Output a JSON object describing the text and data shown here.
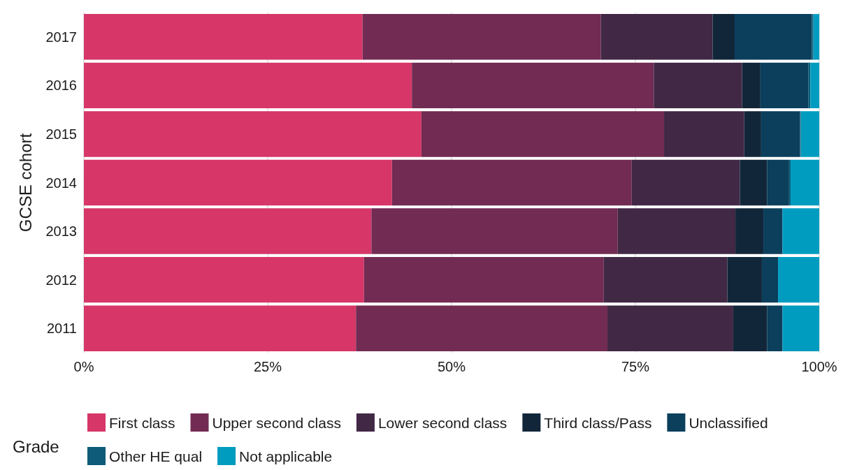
{
  "chart_data": {
    "type": "bar",
    "orientation": "horizontal",
    "stacked": true,
    "ylabel": "GCSE cohort",
    "legend_title": "Grade",
    "categories": [
      "2017",
      "2016",
      "2015",
      "2014",
      "2013",
      "2012",
      "2011"
    ],
    "series": [
      {
        "name": "First class",
        "color": "#d63668",
        "values": [
          37.9,
          44.6,
          45.9,
          41.9,
          39.1,
          38.1,
          37.0
        ]
      },
      {
        "name": "Upper second class",
        "color": "#722b53",
        "values": [
          32.4,
          32.9,
          33.0,
          32.6,
          33.5,
          32.6,
          34.2
        ]
      },
      {
        "name": "Lower second class",
        "color": "#412845",
        "values": [
          15.2,
          12.0,
          10.9,
          14.7,
          16.0,
          16.8,
          17.1
        ]
      },
      {
        "name": "Third class/Pass",
        "color": "#12263a",
        "values": [
          3.0,
          2.5,
          2.3,
          3.7,
          3.8,
          4.7,
          4.6
        ]
      },
      {
        "name": "Unclassified",
        "color": "#0b3f5c",
        "values": [
          10.5,
          6.5,
          5.3,
          3.0,
          2.6,
          2.2,
          2.1
        ]
      },
      {
        "name": "Other HE qual",
        "color": "#0d5b78",
        "values": [
          0.2,
          0.3,
          0.1,
          0.2,
          0,
          0,
          0
        ]
      },
      {
        "name": "Not applicable",
        "color": "#009cc0",
        "values": [
          0.8,
          1.2,
          2.5,
          3.9,
          5.0,
          5.6,
          5.0
        ]
      }
    ],
    "xlim": [
      0,
      100
    ],
    "xticks": [
      {
        "value": 0,
        "label": "0%"
      },
      {
        "value": 25,
        "label": "25%"
      },
      {
        "value": 50,
        "label": "50%"
      },
      {
        "value": 75,
        "label": "75%"
      },
      {
        "value": 100,
        "label": "100%"
      }
    ],
    "grid": "x",
    "legend": "bottom"
  }
}
